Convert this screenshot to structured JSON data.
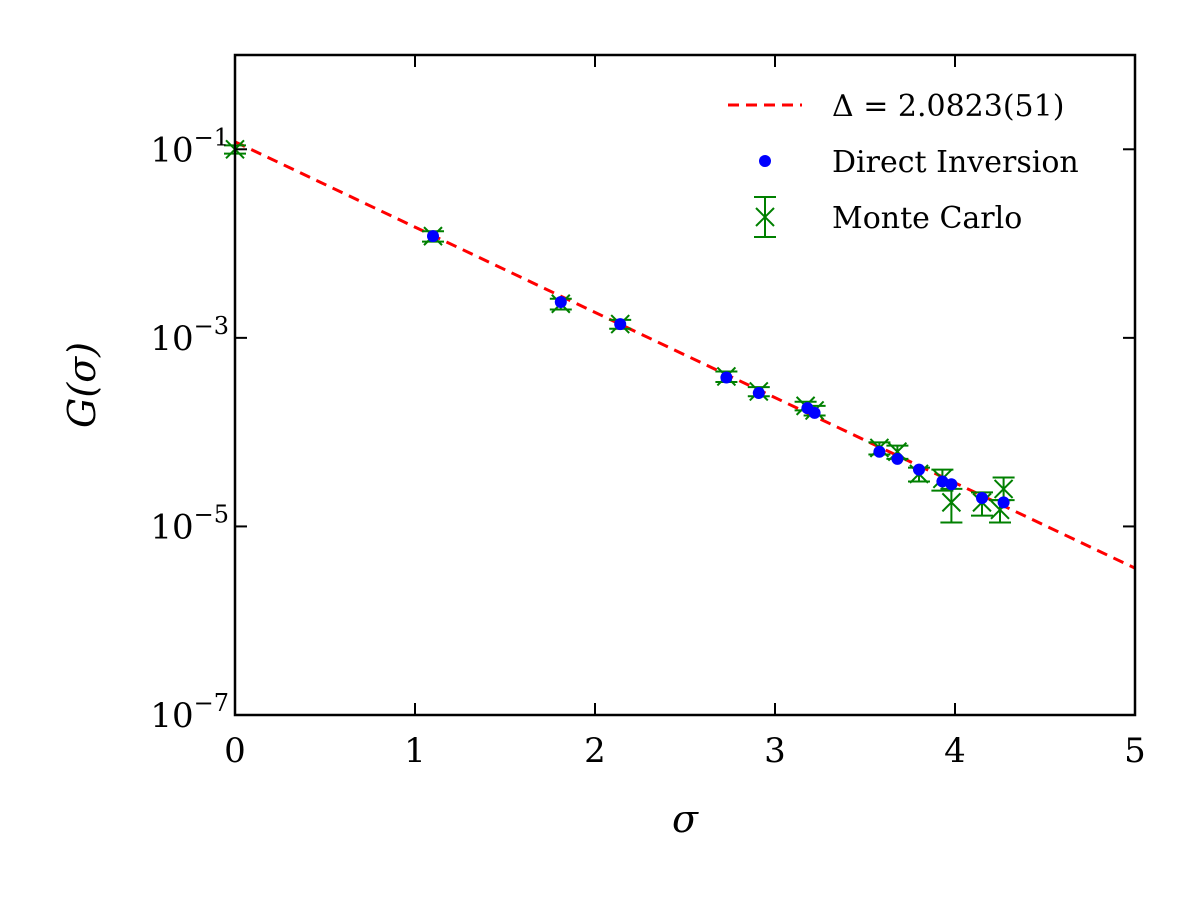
{
  "chart_data": {
    "type": "scatter",
    "xlabel": "σ",
    "ylabel": "G(σ)",
    "xlim": [
      0,
      5
    ],
    "ylim": [
      1e-07,
      1
    ],
    "yscale": "log",
    "grid": false,
    "legend_position": "top-right",
    "x_ticks": [
      "0",
      "1",
      "2",
      "3",
      "4",
      "5"
    ],
    "y_ticks": [
      {
        "value": 1e-07,
        "base": "10",
        "exp": "−7"
      },
      {
        "value": 1e-05,
        "base": "10",
        "exp": "−5"
      },
      {
        "value": 0.001,
        "base": "10",
        "exp": "−3"
      },
      {
        "value": 0.1,
        "base": "10",
        "exp": "−1"
      }
    ],
    "fit": {
      "name": "Δ = 2.0823(51)",
      "intercept": 0.12,
      "delta": 2.0823,
      "x_range": [
        0,
        5
      ],
      "color": "#ff0000"
    },
    "series": [
      {
        "name": "Direct Inversion",
        "color": "#0000ff",
        "x": [
          1.1,
          1.81,
          2.14,
          2.73,
          2.91,
          3.18,
          3.22,
          3.58,
          3.68,
          3.8,
          3.93,
          3.98,
          4.15,
          4.27
        ],
        "y": [
          0.012,
          0.0024,
          0.0014,
          0.00038,
          0.00026,
          0.00018,
          0.00016,
          6.2e-05,
          5.2e-05,
          4e-05,
          3e-05,
          2.8e-05,
          2e-05,
          1.8e-05
        ]
      },
      {
        "name": "Monte Carlo",
        "color": "#008000",
        "x": [
          0.0,
          1.1,
          1.81,
          2.14,
          2.73,
          2.91,
          3.17,
          3.22,
          3.58,
          3.68,
          3.8,
          3.93,
          3.98,
          4.15,
          4.25,
          4.27
        ],
        "y": [
          0.1,
          0.012,
          0.0023,
          0.0014,
          0.00039,
          0.00027,
          0.00019,
          0.00017,
          6.8e-05,
          6.2e-05,
          3.6e-05,
          3.2e-05,
          1.8e-05,
          1.8e-05,
          1.5e-05,
          2.5e-05
        ],
        "err_low": [
          0.01,
          0.0015,
          0.0003,
          0.00015,
          5e-05,
          3e-05,
          2e-05,
          2e-05,
          1e-05,
          1e-05,
          6e-06,
          8e-06,
          7e-06,
          5e-06,
          4e-06,
          6e-06
        ],
        "err_high": [
          0.01,
          0.0015,
          0.0003,
          0.00015,
          5e-05,
          3e-05,
          2e-05,
          2e-05,
          1e-05,
          1e-05,
          6e-06,
          8e-06,
          7e-06,
          5e-06,
          4e-06,
          8e-06
        ]
      }
    ],
    "legend": [
      {
        "label": "Δ = 2.0823(51)",
        "marker": "dashed-line",
        "color": "#ff0000"
      },
      {
        "label": "Direct Inversion",
        "marker": "dot",
        "color": "#0000ff"
      },
      {
        "label": "Monte Carlo",
        "marker": "x-errorbar",
        "color": "#008000"
      }
    ]
  }
}
